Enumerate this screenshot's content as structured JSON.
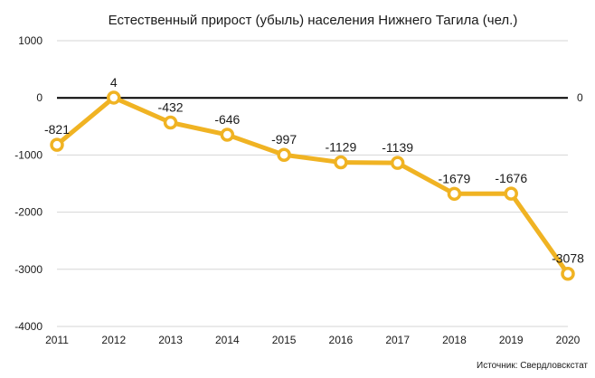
{
  "chart_data": {
    "type": "line",
    "title": "Естественный прирост (убыль) населения Нижнего Тагила (чел.)",
    "x": [
      "2011",
      "2012",
      "2013",
      "2014",
      "2015",
      "2016",
      "2017",
      "2018",
      "2019",
      "2020"
    ],
    "values": [
      -821,
      4,
      -432,
      -646,
      -997,
      -1129,
      -1139,
      -1679,
      -1676,
      -3078
    ],
    "data_labels": [
      "-821",
      "4",
      "-432",
      "-646",
      "-997",
      "-1129",
      "-1139",
      "-1679",
      "-1676",
      "-3078"
    ],
    "ylim": [
      -4000,
      1000
    ],
    "yticks": [
      "1000",
      "0",
      "-1000",
      "-2000",
      "-3000",
      "-4000"
    ],
    "ytick_values": [
      1000,
      0,
      -1000,
      -2000,
      -3000,
      -4000
    ],
    "right_axis_label": "0",
    "grid": true,
    "line_color": "#f0b323",
    "marker_fill": "#ffffff",
    "source": "Источник: Свердловскстат"
  }
}
